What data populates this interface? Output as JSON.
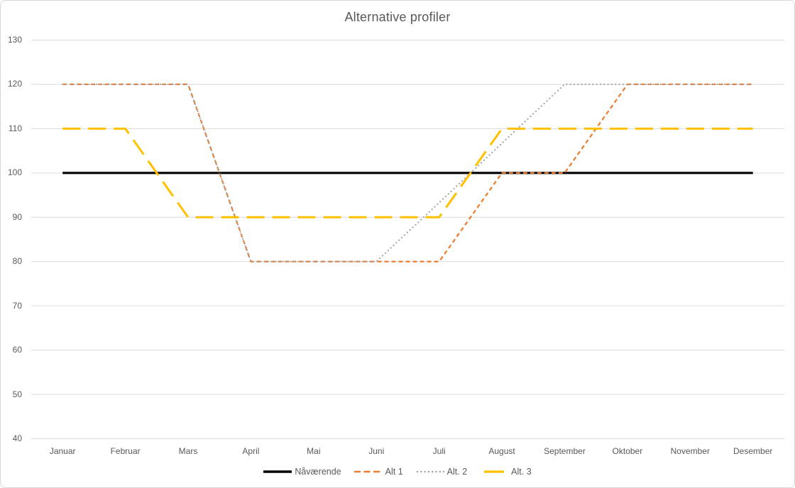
{
  "chart_data": {
    "type": "line",
    "title": "Alternative profiler",
    "categories": [
      "Januar",
      "Februar",
      "Mars",
      "April",
      "Mai",
      "Juni",
      "Juli",
      "August",
      "September",
      "Oktober",
      "November",
      "Desember"
    ],
    "series": [
      {
        "name": "Nåværende",
        "color": "#000000",
        "line_style": "solid",
        "line_width": 3.2,
        "values": [
          100,
          100,
          100,
          100,
          100,
          100,
          100,
          100,
          100,
          100,
          100,
          100
        ]
      },
      {
        "name": "Alt 1",
        "color": "#ED7D31",
        "line_style": "dash",
        "line_width": 2.25,
        "values": [
          120,
          120,
          120,
          80,
          80,
          80,
          80,
          100,
          100,
          120,
          120,
          120
        ]
      },
      {
        "name": "Alt. 2",
        "color": "#A6A6A6",
        "line_style": "dot",
        "line_width": 2.2,
        "values": [
          120,
          120,
          120,
          80,
          80,
          80,
          93.3,
          106.7,
          120,
          120,
          120,
          120
        ]
      },
      {
        "name": "Alt. 3",
        "color": "#FFC000",
        "line_style": "long-dash",
        "line_width": 3,
        "values": [
          110,
          110,
          90,
          90,
          90,
          90,
          90,
          110,
          110,
          110,
          110,
          110
        ]
      }
    ],
    "y_axis": {
      "min": 40,
      "max": 130,
      "step": 10,
      "tick_labels": [
        "40",
        "50",
        "60",
        "70",
        "80",
        "90",
        "100",
        "110",
        "120",
        "130"
      ]
    },
    "x_axis": {
      "tick_labels": [
        "Januar",
        "Februar",
        "Mars",
        "April",
        "Mai",
        "Juni",
        "Juli",
        "August",
        "September",
        "Oktober",
        "November",
        "Desember"
      ]
    },
    "grid": true,
    "legend_position": "bottom",
    "colors": {
      "background": "#FFFFFF",
      "border": "#D7D7D7",
      "gridline": "#D9D9D9",
      "text": "#595959"
    }
  }
}
